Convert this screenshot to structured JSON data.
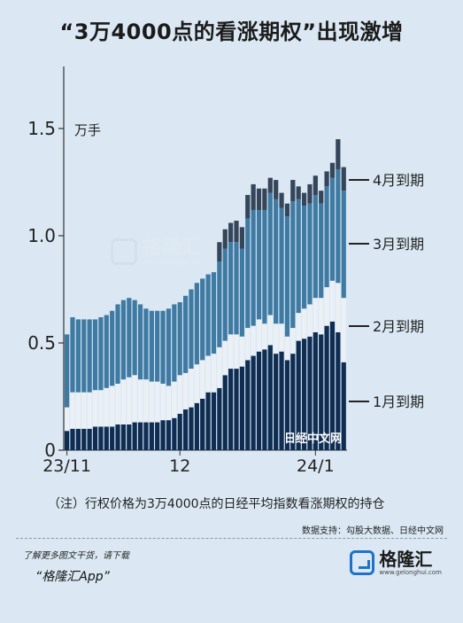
{
  "title": "“3万4000点的看涨期权”出现激增",
  "note": "（注）行权价格为3万4000点的日经平均指数看涨期权的持仓",
  "source": "数据支持：勾股大数据、日经中文网",
  "chart_watermark": "日经中文网",
  "footer": {
    "line1": "了解更多图文干货，请下载",
    "line2": "“格隆汇App”",
    "brand_name": "格隆汇",
    "brand_url": "www.gelonghui.com"
  },
  "watermark": {
    "name": "格隆汇",
    "url": "www.gelonghui.com"
  },
  "colors": {
    "background": "#dbe8f3",
    "jan": "#0f2d52",
    "feb": "#eaf0f5",
    "mar": "#3f7aa3",
    "apr": "#35455a"
  },
  "chart_data": {
    "type": "bar",
    "stacked": true,
    "unit": "万手",
    "ylim": [
      0,
      1.5
    ],
    "yticks": [
      0,
      0.5,
      1.0,
      1.5
    ],
    "ytick_labels": [
      "0",
      "0.5",
      "1.0",
      "1.5"
    ],
    "xtick_labels": [
      "23/11",
      "12",
      "24/1"
    ],
    "series_labels": [
      "4月到期",
      "3月到期",
      "2月到期",
      "1月到期"
    ],
    "grid": false,
    "series": [
      {
        "name": "1月到期",
        "values": [
          0.09,
          0.1,
          0.1,
          0.1,
          0.1,
          0.11,
          0.11,
          0.11,
          0.11,
          0.12,
          0.12,
          0.12,
          0.13,
          0.13,
          0.13,
          0.13,
          0.13,
          0.14,
          0.14,
          0.15,
          0.17,
          0.19,
          0.2,
          0.22,
          0.24,
          0.27,
          0.27,
          0.29,
          0.35,
          0.38,
          0.38,
          0.39,
          0.42,
          0.44,
          0.46,
          0.47,
          0.49,
          0.45,
          0.46,
          0.42,
          0.45,
          0.51,
          0.52,
          0.53,
          0.55,
          0.54,
          0.58,
          0.6,
          0.55,
          0.41
        ]
      },
      {
        "name": "2月到期",
        "values": [
          0.11,
          0.17,
          0.17,
          0.17,
          0.17,
          0.17,
          0.17,
          0.18,
          0.19,
          0.19,
          0.21,
          0.22,
          0.22,
          0.2,
          0.2,
          0.19,
          0.19,
          0.17,
          0.16,
          0.17,
          0.18,
          0.17,
          0.18,
          0.18,
          0.18,
          0.17,
          0.18,
          0.19,
          0.16,
          0.16,
          0.16,
          0.14,
          0.15,
          0.14,
          0.15,
          0.12,
          0.14,
          0.14,
          0.13,
          0.11,
          0.12,
          0.13,
          0.14,
          0.15,
          0.16,
          0.17,
          0.18,
          0.19,
          0.23,
          0.3
        ]
      },
      {
        "name": "3月到期",
        "values": [
          0.34,
          0.35,
          0.34,
          0.34,
          0.34,
          0.33,
          0.34,
          0.34,
          0.35,
          0.37,
          0.37,
          0.37,
          0.35,
          0.35,
          0.33,
          0.33,
          0.33,
          0.34,
          0.36,
          0.36,
          0.34,
          0.36,
          0.37,
          0.38,
          0.38,
          0.38,
          0.38,
          0.4,
          0.43,
          0.43,
          0.43,
          0.41,
          0.51,
          0.54,
          0.51,
          0.53,
          0.57,
          0.58,
          0.54,
          0.56,
          0.59,
          0.53,
          0.48,
          0.47,
          0.48,
          0.44,
          0.47,
          0.48,
          0.53,
          0.5
        ]
      },
      {
        "name": "4月到期",
        "values": [
          0,
          0,
          0,
          0,
          0,
          0,
          0,
          0,
          0,
          0,
          0,
          0,
          0,
          0,
          0,
          0,
          0,
          0,
          0,
          0,
          0,
          0,
          0,
          0,
          0,
          0,
          0,
          0.09,
          0.09,
          0.09,
          0.1,
          0.1,
          0.11,
          0.12,
          0.1,
          0.1,
          0.07,
          0.09,
          0.07,
          0.06,
          0.1,
          0.06,
          0.06,
          0.09,
          0.09,
          0.06,
          0.07,
          0.07,
          0.14,
          0.11
        ]
      }
    ]
  }
}
